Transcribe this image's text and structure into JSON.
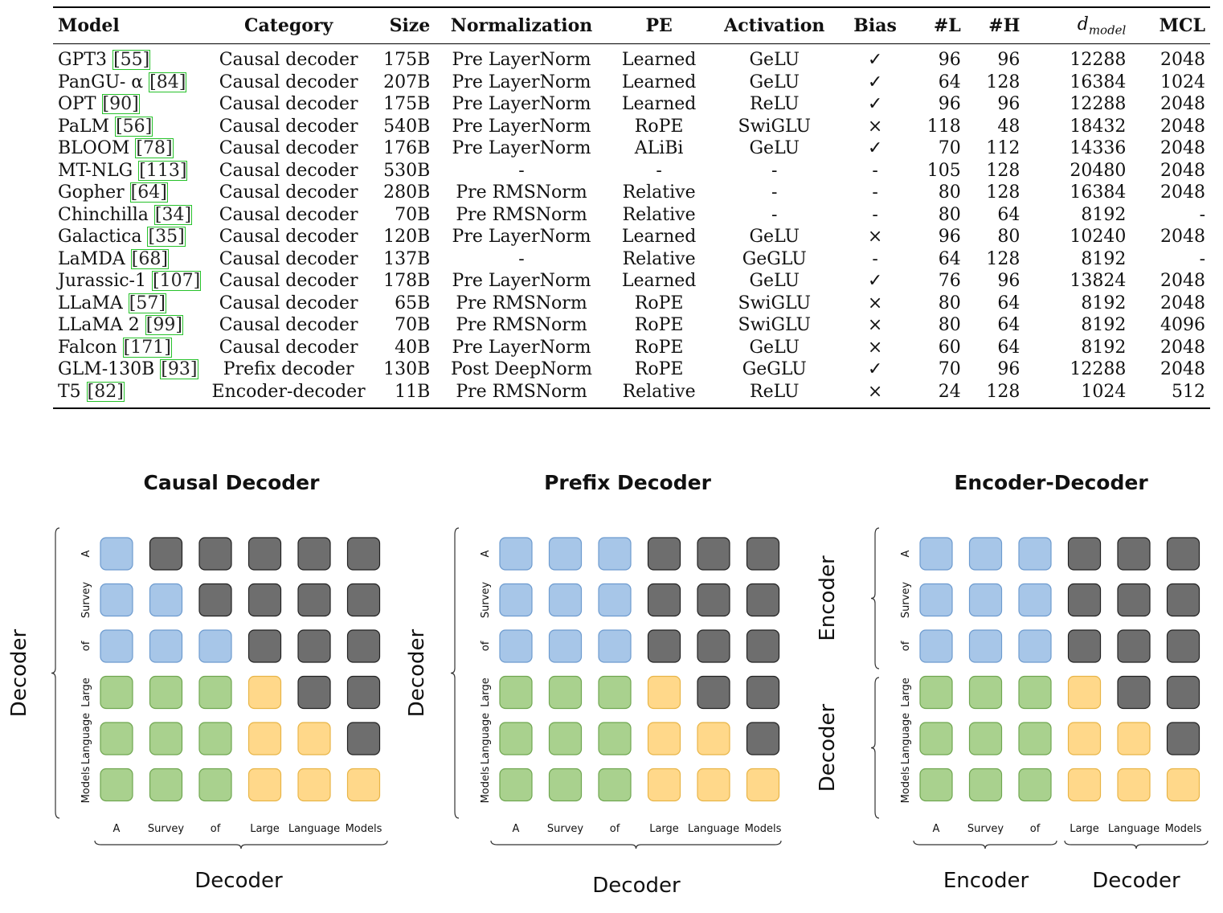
{
  "table": {
    "headers": [
      "Model",
      "Category",
      "Size",
      "Normalization",
      "PE",
      "Activation",
      "Bias",
      "#L",
      "#H",
      "d_model",
      "MCL"
    ],
    "dmodel_base": "d",
    "dmodel_sub": "model",
    "rows": [
      {
        "model": "GPT3",
        "cite": "55",
        "category": "Causal decoder",
        "size": "175B",
        "norm": "Pre LayerNorm",
        "pe": "Learned",
        "act": "GeLU",
        "bias": "✓",
        "l": "96",
        "h": "96",
        "d": "12288",
        "mcl": "2048"
      },
      {
        "model": "PanGU- α",
        "cite": "84",
        "category": "Causal decoder",
        "size": "207B",
        "norm": "Pre LayerNorm",
        "pe": "Learned",
        "act": "GeLU",
        "bias": "✓",
        "l": "64",
        "h": "128",
        "d": "16384",
        "mcl": "1024"
      },
      {
        "model": "OPT",
        "cite": "90",
        "category": "Causal decoder",
        "size": "175B",
        "norm": "Pre LayerNorm",
        "pe": "Learned",
        "act": "ReLU",
        "bias": "✓",
        "l": "96",
        "h": "96",
        "d": "12288",
        "mcl": "2048"
      },
      {
        "model": "PaLM",
        "cite": "56",
        "category": "Causal decoder",
        "size": "540B",
        "norm": "Pre LayerNorm",
        "pe": "RoPE",
        "act": "SwiGLU",
        "bias": "×",
        "l": "118",
        "h": "48",
        "d": "18432",
        "mcl": "2048"
      },
      {
        "model": "BLOOM",
        "cite": "78",
        "category": "Causal decoder",
        "size": "176B",
        "norm": "Pre LayerNorm",
        "pe": "ALiBi",
        "act": "GeLU",
        "bias": "✓",
        "l": "70",
        "h": "112",
        "d": "14336",
        "mcl": "2048"
      },
      {
        "model": "MT-NLG",
        "cite": "113",
        "category": "Causal decoder",
        "size": "530B",
        "norm": "-",
        "pe": "-",
        "act": "-",
        "bias": "-",
        "l": "105",
        "h": "128",
        "d": "20480",
        "mcl": "2048"
      },
      {
        "model": "Gopher",
        "cite": "64",
        "category": "Causal decoder",
        "size": "280B",
        "norm": "Pre RMSNorm",
        "pe": "Relative",
        "act": "-",
        "bias": "-",
        "l": "80",
        "h": "128",
        "d": "16384",
        "mcl": "2048"
      },
      {
        "model": "Chinchilla",
        "cite": "34",
        "category": "Causal decoder",
        "size": "70B",
        "norm": "Pre RMSNorm",
        "pe": "Relative",
        "act": "-",
        "bias": "-",
        "l": "80",
        "h": "64",
        "d": "8192",
        "mcl": "-"
      },
      {
        "model": "Galactica",
        "cite": "35",
        "category": "Causal decoder",
        "size": "120B",
        "norm": "Pre LayerNorm",
        "pe": "Learned",
        "act": "GeLU",
        "bias": "×",
        "l": "96",
        "h": "80",
        "d": "10240",
        "mcl": "2048"
      },
      {
        "model": "LaMDA",
        "cite": "68",
        "category": "Causal decoder",
        "size": "137B",
        "norm": "-",
        "pe": "Relative",
        "act": "GeGLU",
        "bias": "-",
        "l": "64",
        "h": "128",
        "d": "8192",
        "mcl": "-"
      },
      {
        "model": "Jurassic-1",
        "cite": "107",
        "category": "Causal decoder",
        "size": "178B",
        "norm": "Pre LayerNorm",
        "pe": "Learned",
        "act": "GeLU",
        "bias": "✓",
        "l": "76",
        "h": "96",
        "d": "13824",
        "mcl": "2048"
      },
      {
        "model": "LLaMA",
        "cite": "57",
        "category": "Causal decoder",
        "size": "65B",
        "norm": "Pre RMSNorm",
        "pe": "RoPE",
        "act": "SwiGLU",
        "bias": "×",
        "l": "80",
        "h": "64",
        "d": "8192",
        "mcl": "2048"
      },
      {
        "model": "LLaMA 2",
        "cite": "99",
        "category": "Causal decoder",
        "size": "70B",
        "norm": "Pre RMSNorm",
        "pe": "RoPE",
        "act": "SwiGLU",
        "bias": "×",
        "l": "80",
        "h": "64",
        "d": "8192",
        "mcl": "4096"
      },
      {
        "model": "Falcon",
        "cite": "171",
        "category": "Causal decoder",
        "size": "40B",
        "norm": "Pre LayerNorm",
        "pe": "RoPE",
        "act": "GeLU",
        "bias": "×",
        "l": "60",
        "h": "64",
        "d": "8192",
        "mcl": "2048"
      },
      {
        "model": "GLM-130B",
        "cite": "93",
        "category": "Prefix decoder",
        "size": "130B",
        "norm": "Post DeepNorm",
        "pe": "RoPE",
        "act": "GeGLU",
        "bias": "✓",
        "l": "70",
        "h": "96",
        "d": "12288",
        "mcl": "2048"
      },
      {
        "model": "T5",
        "cite": "82",
        "category": "Encoder-decoder",
        "size": "11B",
        "norm": "Pre RMSNorm",
        "pe": "Relative",
        "act": "ReLU",
        "bias": "×",
        "l": "24",
        "h": "128",
        "d": "1024",
        "mcl": "512"
      }
    ]
  },
  "colors": {
    "blue": "#a7c6e8",
    "blue_border": "#6d9bcf",
    "green": "#a9d18e",
    "green_border": "#6fa650",
    "yellow": "#ffd88a",
    "yellow_border": "#e8b547",
    "gray": "#6e6e6e",
    "gray_border": "#222222",
    "cite_box": "#27c22b"
  },
  "tokens": [
    "A",
    "Survey",
    "of",
    "Large",
    "Language",
    "Models"
  ],
  "panels": [
    {
      "title": "Causal Decoder",
      "y_labels": [
        "Decoder"
      ],
      "x_labels": [
        "Decoder"
      ],
      "matrix": [
        [
          "B",
          "G",
          "G",
          "G",
          "G",
          "G"
        ],
        [
          "B",
          "B",
          "G",
          "G",
          "G",
          "G"
        ],
        [
          "B",
          "B",
          "B",
          "G",
          "G",
          "G"
        ],
        [
          "N",
          "N",
          "N",
          "Y",
          "G",
          "G"
        ],
        [
          "N",
          "N",
          "N",
          "Y",
          "Y",
          "G"
        ],
        [
          "N",
          "N",
          "N",
          "Y",
          "Y",
          "Y"
        ]
      ]
    },
    {
      "title": "Prefix Decoder",
      "y_labels": [
        "Decoder"
      ],
      "x_labels": [
        "Decoder"
      ],
      "matrix": [
        [
          "B",
          "B",
          "B",
          "G",
          "G",
          "G"
        ],
        [
          "B",
          "B",
          "B",
          "G",
          "G",
          "G"
        ],
        [
          "B",
          "B",
          "B",
          "G",
          "G",
          "G"
        ],
        [
          "N",
          "N",
          "N",
          "Y",
          "G",
          "G"
        ],
        [
          "N",
          "N",
          "N",
          "Y",
          "Y",
          "G"
        ],
        [
          "N",
          "N",
          "N",
          "Y",
          "Y",
          "Y"
        ]
      ]
    },
    {
      "title": "Encoder-Decoder",
      "y_labels": [
        "Encoder",
        "Decoder"
      ],
      "x_labels": [
        "Encoder",
        "Decoder"
      ],
      "matrix": [
        [
          "B",
          "B",
          "B",
          "G",
          "G",
          "G"
        ],
        [
          "B",
          "B",
          "B",
          "G",
          "G",
          "G"
        ],
        [
          "B",
          "B",
          "B",
          "G",
          "G",
          "G"
        ],
        [
          "N",
          "N",
          "N",
          "Y",
          "G",
          "G"
        ],
        [
          "N",
          "N",
          "N",
          "Y",
          "Y",
          "G"
        ],
        [
          "N",
          "N",
          "N",
          "Y",
          "Y",
          "Y"
        ]
      ]
    }
  ]
}
